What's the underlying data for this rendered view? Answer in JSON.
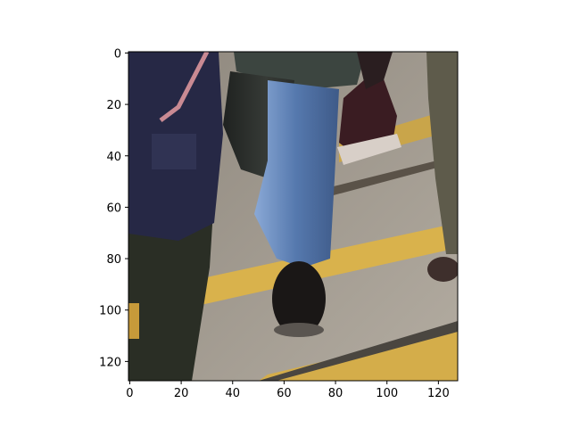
{
  "figure": {
    "image_description_hidden": "",
    "x_axis": {
      "ticks": [
        "0",
        "20",
        "40",
        "60",
        "80",
        "100",
        "120"
      ],
      "range": [
        0,
        127
      ]
    },
    "y_axis": {
      "ticks": [
        "0",
        "20",
        "40",
        "60",
        "80",
        "100",
        "120"
      ],
      "range": [
        0,
        127
      ],
      "inverted": true
    },
    "colors": {
      "pavement": "#a39c92",
      "yellow_stripe": "#d6b04a",
      "dark_trousers": "#2d2f2b",
      "jeans": "#5a7fb4",
      "navy_jacket": "#2a2c48",
      "red_shoe": "#6b2730"
    }
  }
}
